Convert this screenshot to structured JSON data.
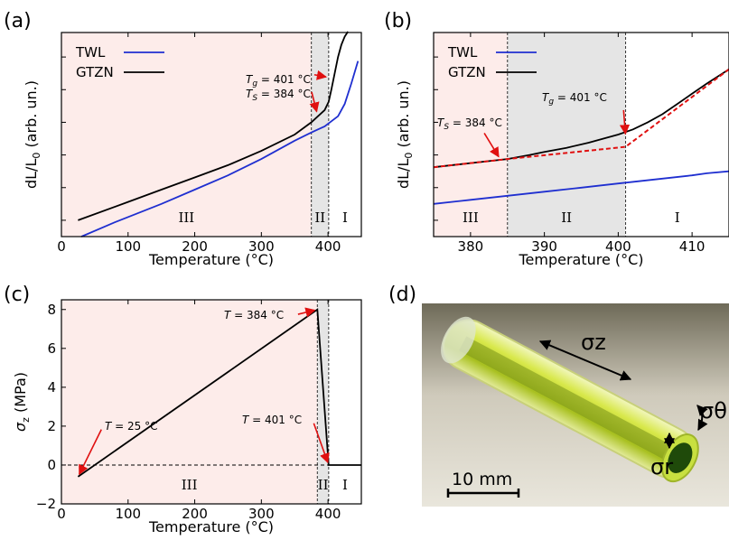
{
  "colors": {
    "region_III_bg": "#fdecea",
    "region_II_bg": "#e5e5e5",
    "twl": "#1f2fd0",
    "gtzn": "#000000",
    "fit": "#e01010",
    "arrow": "#e01010"
  },
  "panels": [
    {
      "label": "(a)"
    },
    {
      "label": "(b)"
    },
    {
      "label": "(c)"
    },
    {
      "label": "(d)"
    }
  ],
  "chart_data": [
    {
      "type": "line",
      "panel": "(a)",
      "xlabel": "Temperature (°C)",
      "ylabel": "dL/L0 (arb. un.)",
      "xlim": [
        0,
        450
      ],
      "ylim": [
        0,
        100
      ],
      "xticks": [
        "0",
        "100",
        "200",
        "300",
        "400"
      ],
      "yticks": [],
      "legend": {
        "placement": "top-left",
        "entries": [
          "TWL",
          "GTZN"
        ]
      },
      "regions": [
        {
          "label": "III",
          "from": 0,
          "to": 375
        },
        {
          "label": "II",
          "from": 375,
          "to": 401
        },
        {
          "label": "I",
          "from": 401,
          "to": 450
        }
      ],
      "annotations": [
        {
          "text_var": "T",
          "text_sub": "g",
          "text_val": " = 401 °C",
          "at": [
            401,
            78
          ]
        },
        {
          "text_var": "T",
          "text_sub": "S",
          "text_val": " = 384 °C",
          "at": [
            384,
            60
          ]
        }
      ],
      "series": [
        {
          "name": "TWL",
          "color": "#1f2fd0",
          "x": [
            30,
            80,
            150,
            200,
            250,
            300,
            350,
            375,
            385,
            395,
            405,
            415,
            425,
            435,
            445
          ],
          "y": [
            0,
            7,
            16,
            23,
            30,
            38,
            47,
            51,
            52.5,
            54,
            56.5,
            59,
            65,
            75,
            86
          ]
        },
        {
          "name": "GTZN",
          "color": "#000000",
          "x": [
            25,
            100,
            150,
            200,
            250,
            300,
            350,
            375,
            385,
            395,
            401,
            405,
            410,
            415,
            420,
            425,
            430
          ],
          "y": [
            8,
            17,
            23,
            29,
            35,
            42,
            50,
            56,
            59,
            62,
            66,
            72,
            80,
            88,
            94,
            98,
            101
          ]
        }
      ]
    },
    {
      "type": "line",
      "panel": "(b)",
      "xlabel": "Temperature (°C)",
      "ylabel": "dL/L0 (arb. un.)",
      "xlim": [
        375,
        415
      ],
      "ylim": [
        0,
        100
      ],
      "xticks": [
        "380",
        "390",
        "400",
        "410"
      ],
      "yticks": [],
      "legend": {
        "placement": "top-left",
        "entries": [
          "TWL",
          "GTZN"
        ]
      },
      "regions": [
        {
          "label": "III",
          "from": 375,
          "to": 385
        },
        {
          "label": "II",
          "from": 385,
          "to": 401
        },
        {
          "label": "I",
          "from": 401,
          "to": 415
        }
      ],
      "annotations": [
        {
          "text_var": "T",
          "text_sub": "g",
          "text_val": " = 401 °C",
          "at": [
            401,
            49
          ]
        },
        {
          "text_var": "T",
          "text_sub": "S",
          "text_val": " = 384 °C",
          "at": [
            384,
            38
          ]
        }
      ],
      "series": [
        {
          "name": "TWL",
          "color": "#1f2fd0",
          "x": [
            375,
            380,
            385,
            390,
            395,
            400,
            405,
            410,
            412,
            415
          ],
          "y": [
            16,
            18,
            20,
            22,
            24,
            26,
            28,
            30,
            31,
            32
          ]
        },
        {
          "name": "GTZN",
          "color": "#000000",
          "x": [
            375,
            380,
            385,
            388,
            390,
            393,
            396,
            398,
            400,
            402,
            404,
            406,
            408,
            410,
            412,
            415
          ],
          "y": [
            34,
            36,
            38,
            40,
            41.5,
            43.5,
            46,
            48,
            50,
            52.5,
            56,
            60,
            65,
            70,
            75,
            82
          ]
        },
        {
          "name": "",
          "color": "#e01010",
          "dashed": true,
          "x": [
            375,
            385,
            401,
            415
          ],
          "y": [
            34,
            38,
            44,
            82
          ]
        }
      ]
    },
    {
      "type": "line",
      "panel": "(c)",
      "xlabel": "Temperature (°C)",
      "ylabel": "σz (MPa)",
      "xlim": [
        0,
        450
      ],
      "ylim": [
        -2,
        8.5
      ],
      "xticks": [
        "0",
        "100",
        "200",
        "300",
        "400"
      ],
      "yticks": [
        "−2",
        "0",
        "2",
        "4",
        "6",
        "8"
      ],
      "yticks_values": [
        -2,
        0,
        2,
        4,
        6,
        8
      ],
      "regions": [
        {
          "label": "III",
          "from": 0,
          "to": 384
        },
        {
          "label": "II",
          "from": 384,
          "to": 401
        },
        {
          "label": "I",
          "from": 401,
          "to": 450
        }
      ],
      "annotations": [
        {
          "text_var": "T",
          "text_val": " = 384 °C",
          "at": [
            384,
            8
          ]
        },
        {
          "text_var": "T",
          "text_val": " = 401 °C",
          "at": [
            401,
            0
          ]
        },
        {
          "text_var": "T",
          "text_val": " = 25 °C",
          "at": [
            25,
            -0.6
          ]
        }
      ],
      "series": [
        {
          "name": "",
          "color": "#000000",
          "x": [
            25,
            384,
            401,
            450
          ],
          "y": [
            -0.6,
            8,
            0,
            0
          ]
        }
      ]
    }
  ],
  "photo": {
    "sigma_z": "σz",
    "sigma_theta": "σθ",
    "sigma_r": "σr",
    "scale_label": "10 mm"
  }
}
